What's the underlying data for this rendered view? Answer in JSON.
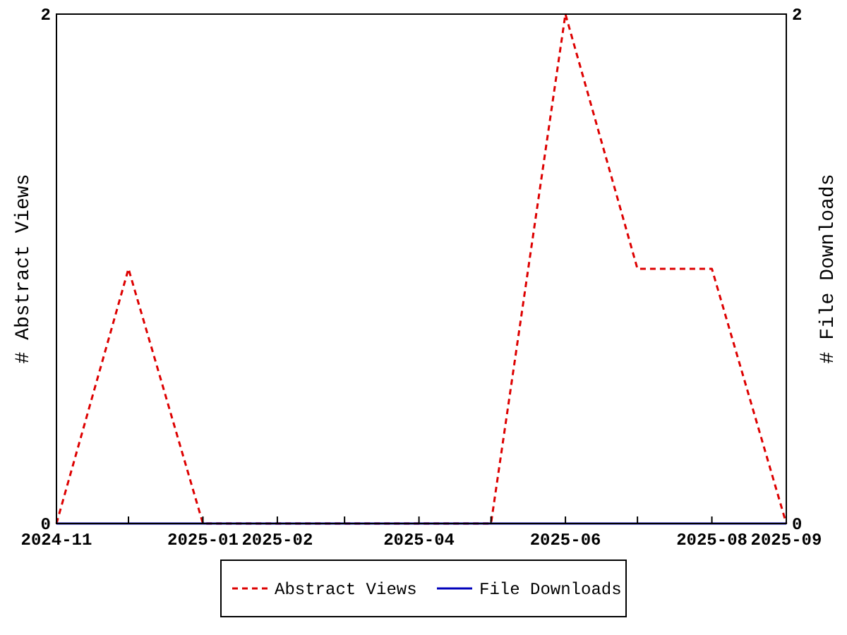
{
  "chart_data": {
    "type": "line",
    "x": [
      "2024-11",
      "2024-12",
      "2025-01",
      "2025-02",
      "2025-03",
      "2025-04",
      "2025-05",
      "2025-06",
      "2025-07",
      "2025-08",
      "2025-09"
    ],
    "series": [
      {
        "name": "Abstract Views",
        "color": "#dd0000",
        "line_style": "dashed",
        "values": [
          0,
          1,
          0,
          0,
          0,
          0,
          0,
          2,
          1,
          1,
          0
        ]
      },
      {
        "name": "File Downloads",
        "color": "#0000bb",
        "line_style": "solid",
        "values": [
          0,
          0,
          0,
          0,
          0,
          0,
          0,
          0,
          0,
          0,
          0
        ]
      }
    ],
    "ylabel": "# Abstract Views",
    "y2label": "# File Downloads",
    "xlim": [
      "2024-11",
      "2025-09"
    ],
    "xticks": [
      {
        "value": "2024-11",
        "label": "2024-11"
      },
      {
        "value": "2024-12",
        "label": null
      },
      {
        "value": "2025-01",
        "label": "2025-01"
      },
      {
        "value": "2025-02",
        "label": "2025-02"
      },
      {
        "value": "2025-03",
        "label": null
      },
      {
        "value": "2025-04",
        "label": "2025-04"
      },
      {
        "value": "2025-05",
        "label": null
      },
      {
        "value": "2025-06",
        "label": "2025-06"
      },
      {
        "value": "2025-07",
        "label": null
      },
      {
        "value": "2025-08",
        "label": "2025-08"
      },
      {
        "value": "2025-09",
        "label": "2025-09"
      }
    ],
    "ylim": [
      0,
      2
    ],
    "yticks": [
      0,
      2
    ],
    "y2lim": [
      0,
      2
    ],
    "y2ticks": [
      0,
      2
    ],
    "legend": "bottom",
    "marker": "none"
  }
}
